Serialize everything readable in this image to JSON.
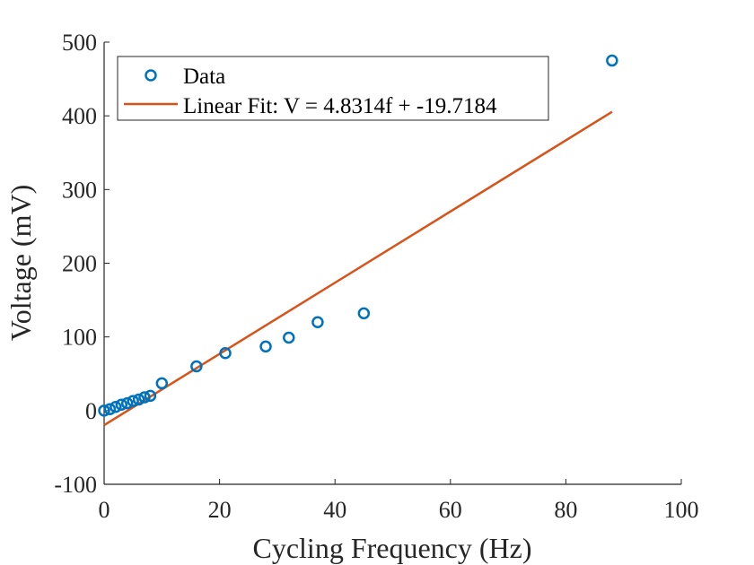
{
  "chart_data": {
    "type": "scatter",
    "xlabel": "Cycling Frequency (Hz)",
    "ylabel": "Voltage (mV)",
    "xlim": [
      0,
      100
    ],
    "ylim": [
      -100,
      500
    ],
    "xticks": [
      0,
      20,
      40,
      60,
      80,
      100
    ],
    "yticks": [
      -100,
      0,
      100,
      200,
      300,
      400,
      500
    ],
    "xtick_labels": [
      "0",
      "20",
      "40",
      "60",
      "80",
      "100"
    ],
    "ytick_labels": [
      "-100",
      "0",
      "100",
      "200",
      "300",
      "400",
      "500"
    ],
    "grid": false,
    "legend_position": "top-left",
    "series": [
      {
        "name": "Data",
        "kind": "scatter",
        "color": "#0072BD",
        "x": [
          0,
          1,
          2,
          3,
          4,
          5,
          6,
          7,
          8,
          10,
          16,
          21,
          28,
          32,
          37,
          45,
          88
        ],
        "y": [
          0,
          2,
          5,
          8,
          10,
          13,
          15,
          18,
          20,
          37,
          60,
          78,
          87,
          99,
          120,
          132,
          475
        ]
      },
      {
        "name": "Linear Fit: V = 4.8314f + -19.7184",
        "kind": "line",
        "color": "#D95319",
        "slope": 4.8314,
        "intercept": -19.7184,
        "x_range": [
          0,
          88
        ]
      }
    ]
  }
}
